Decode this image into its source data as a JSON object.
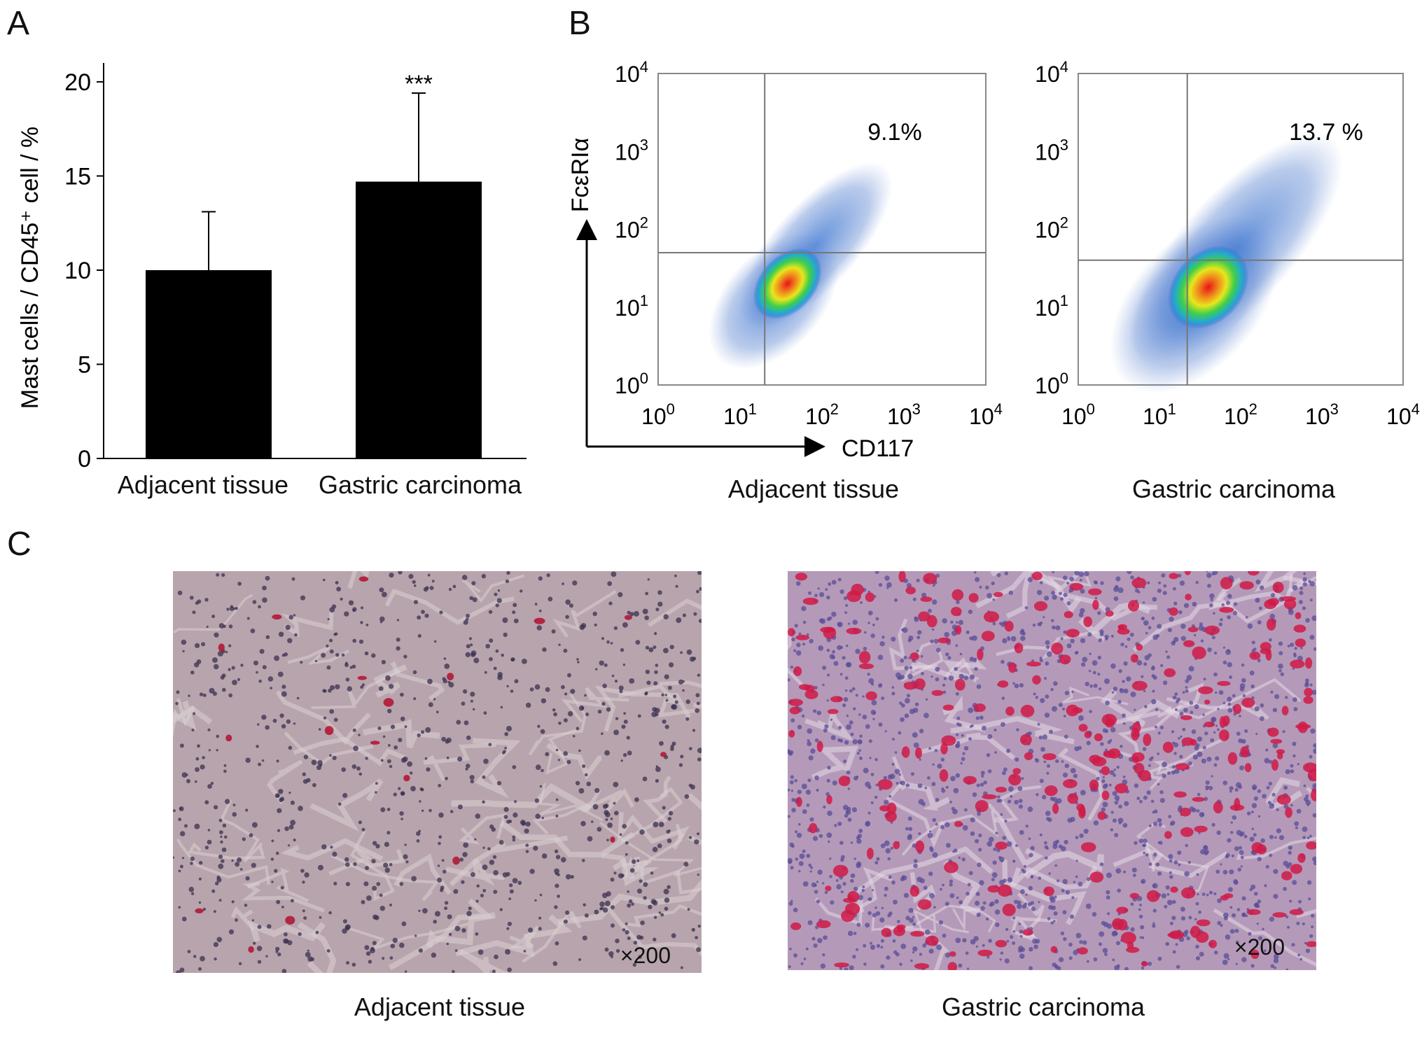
{
  "panels": {
    "A": {
      "letter": "A"
    },
    "B": {
      "letter": "B"
    },
    "C": {
      "letter": "C"
    }
  },
  "chart_data": [
    {
      "type": "bar",
      "panel": "A",
      "categories": [
        "Adjacent tissue",
        "Gastric carcinoma"
      ],
      "values": [
        10.0,
        14.7
      ],
      "error_bars": [
        3.1,
        4.7
      ],
      "significance": [
        "",
        "***"
      ],
      "ylabel": "Mast cells / CD45⁺ cell / %",
      "ylim": [
        0,
        21
      ],
      "yticks": [
        0,
        5,
        10,
        15,
        20
      ],
      "bar_color": "#000000",
      "grid": false
    },
    {
      "type": "scatter",
      "panel": "B",
      "subtype": "flow-cytometry-density",
      "xlabel": "CD117",
      "ylabel": "FcεRIα",
      "log_scale": true,
      "xlim": [
        1,
        10000
      ],
      "ylim": [
        1,
        10000
      ],
      "tick_bases": [
        "10",
        "10",
        "10",
        "10",
        "10"
      ],
      "tick_exps": [
        "0",
        "1",
        "2",
        "3",
        "4"
      ],
      "plots": [
        {
          "caption": "Adjacent tissue",
          "percentage": "9.1%",
          "gate_x": 20,
          "gate_y": 50
        },
        {
          "caption": "Gastric carcinoma",
          "percentage": "13.7 %",
          "gate_x": 22,
          "gate_y": 40
        }
      ]
    }
  ],
  "micrographs": [
    {
      "caption": "Adjacent tissue",
      "magnification": "×200"
    },
    {
      "caption": "Gastric carcinoma",
      "magnification": "×200"
    }
  ]
}
